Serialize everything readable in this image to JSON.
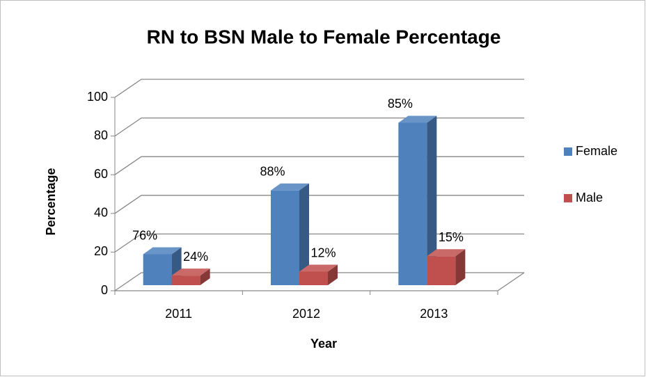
{
  "chart_data": {
    "type": "bar3d",
    "title": "RN to BSN Male to Female Percentage",
    "xlabel": "Year",
    "ylabel": "Percentage",
    "categories": [
      "2011",
      "2012",
      "2013"
    ],
    "series": [
      {
        "name": "Female",
        "color": "#4f81bd",
        "values": [
          16,
          49,
          84
        ],
        "annotations": [
          "76%",
          "88%",
          "85%"
        ]
      },
      {
        "name": "Male",
        "color": "#c0504d",
        "values": [
          5,
          7,
          15
        ],
        "annotations": [
          "24%",
          "12%",
          "15%"
        ]
      }
    ],
    "ylim": [
      0,
      100
    ],
    "yticks": [
      0,
      20,
      40,
      60,
      80,
      100
    ],
    "grid": true,
    "legend": "right"
  }
}
